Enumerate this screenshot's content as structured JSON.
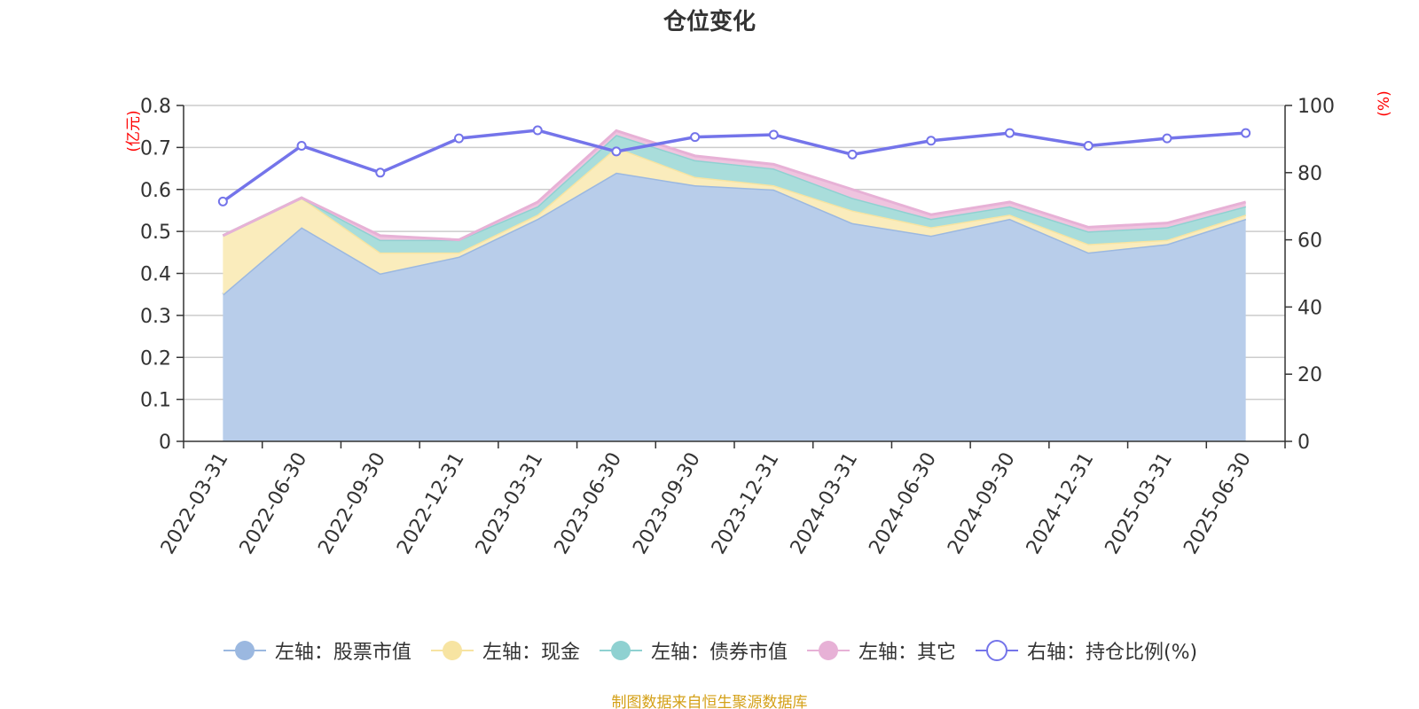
{
  "chart_data": {
    "type": "area",
    "title": "仓位变化",
    "categories": [
      "2022-03-31",
      "2022-06-30",
      "2022-09-30",
      "2022-12-31",
      "2023-03-31",
      "2023-06-30",
      "2023-09-30",
      "2023-12-31",
      "2024-03-31",
      "2024-06-30",
      "2024-09-30",
      "2024-12-31",
      "2025-03-31",
      "2025-06-30"
    ],
    "left_axis": {
      "unit": "(亿元)",
      "ylim": [
        0,
        0.8
      ],
      "ticks": [
        "0",
        "0.1",
        "0.2",
        "0.3",
        "0.4",
        "0.5",
        "0.6",
        "0.7",
        "0.8"
      ]
    },
    "right_axis": {
      "unit": "(%)",
      "ylim": [
        0,
        100
      ],
      "ticks": [
        "0",
        "20",
        "40",
        "60",
        "80",
        "100"
      ]
    },
    "stacked": true,
    "series": [
      {
        "name": "左轴：股票市值",
        "axis": "left",
        "type": "area",
        "color": "#9bb8e0",
        "fill": "#b8cdea",
        "values": [
          0.35,
          0.51,
          0.4,
          0.44,
          0.53,
          0.64,
          0.61,
          0.6,
          0.52,
          0.49,
          0.53,
          0.45,
          0.47,
          0.53
        ]
      },
      {
        "name": "左轴：现金",
        "axis": "left",
        "type": "area",
        "color": "#f7e4a2",
        "fill": "#faecbc",
        "values": [
          0.14,
          0.07,
          0.05,
          0.01,
          0.01,
          0.06,
          0.02,
          0.01,
          0.03,
          0.02,
          0.01,
          0.02,
          0.01,
          0.01
        ]
      },
      {
        "name": "左轴：债券市值",
        "axis": "left",
        "type": "area",
        "color": "#8fd1d1",
        "fill": "#a9dddb",
        "values": [
          0.0,
          0.0,
          0.03,
          0.03,
          0.02,
          0.03,
          0.04,
          0.04,
          0.03,
          0.02,
          0.02,
          0.03,
          0.03,
          0.02
        ]
      },
      {
        "name": "左轴：其它",
        "axis": "left",
        "type": "area",
        "color": "#e7b1d6",
        "fill": "#efc4df",
        "values": [
          0.0,
          0.0,
          0.01,
          0.0,
          0.01,
          0.01,
          0.01,
          0.01,
          0.02,
          0.01,
          0.01,
          0.01,
          0.01,
          0.01
        ]
      },
      {
        "name": "右轴：持仓比例(%)",
        "axis": "right",
        "type": "line",
        "color": "#7474ea",
        "values": [
          71.4,
          88.0,
          80.0,
          90.2,
          92.6,
          86.3,
          90.6,
          91.3,
          85.4,
          89.5,
          91.8,
          88.0,
          90.2,
          91.8
        ]
      }
    ],
    "legend_position": "bottom",
    "grid": true,
    "source": "制图数据来自恒生聚源数据库"
  }
}
